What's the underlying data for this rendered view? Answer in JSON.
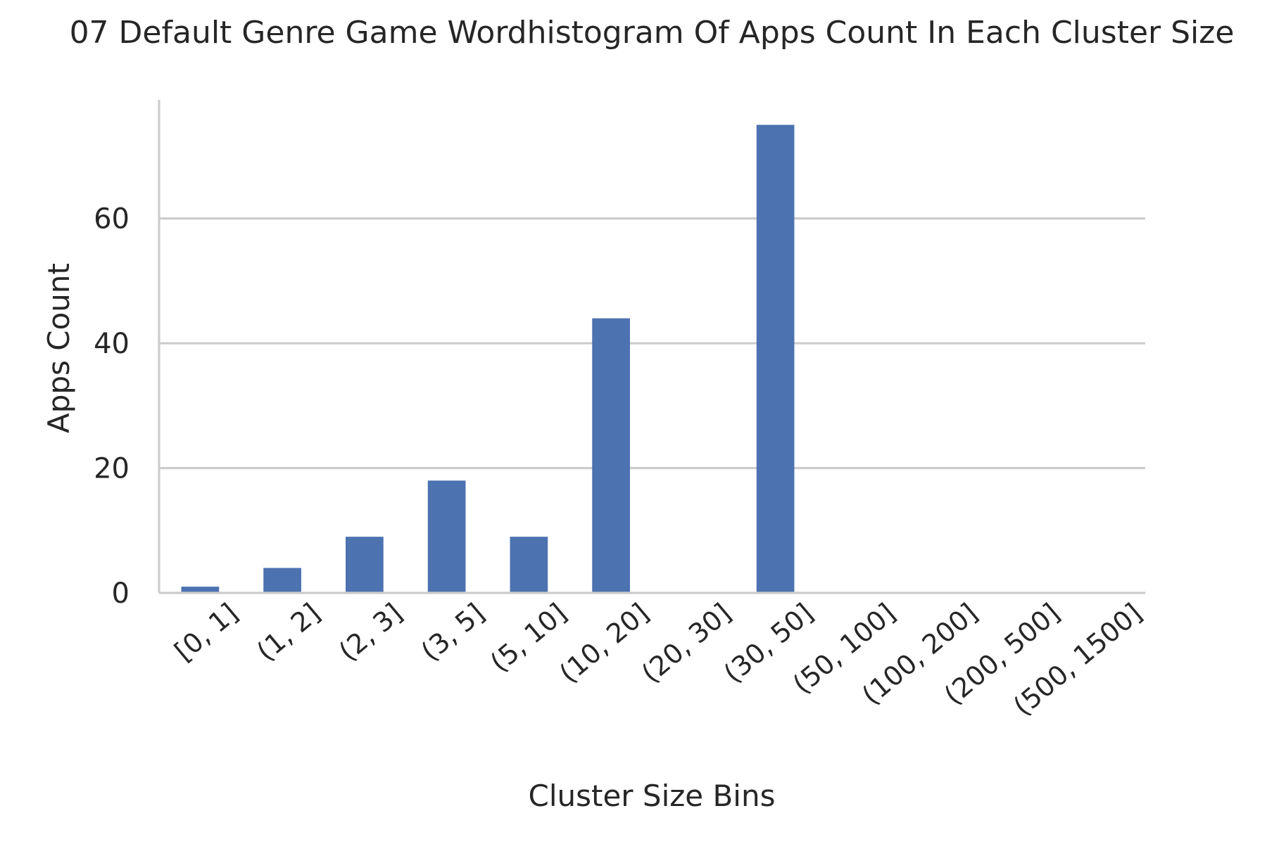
{
  "chart_data": {
    "type": "bar",
    "title": "07 Default Genre Game Wordhistogram Of Apps Count In Each Cluster Size",
    "xlabel": "Cluster Size Bins",
    "ylabel": "Apps Count",
    "categories": [
      "[0, 1]",
      "(1, 2]",
      "(2, 3]",
      "(3, 5]",
      "(5, 10]",
      "(10, 20]",
      "(20, 30]",
      "(30, 50]",
      "(50, 100]",
      "(100, 200]",
      "(200, 500]",
      "(500, 1500]"
    ],
    "values": [
      1,
      4,
      9,
      18,
      9,
      44,
      0,
      75,
      0,
      0,
      0,
      0
    ],
    "yticks": [
      0,
      20,
      40,
      60
    ],
    "ylim": [
      0,
      79
    ],
    "grid": "horizontal",
    "legend": "none",
    "colors": {
      "bar": "#4c72b0",
      "grid": "#cccccc",
      "axis": "#cccccc",
      "text": "#262626"
    }
  }
}
